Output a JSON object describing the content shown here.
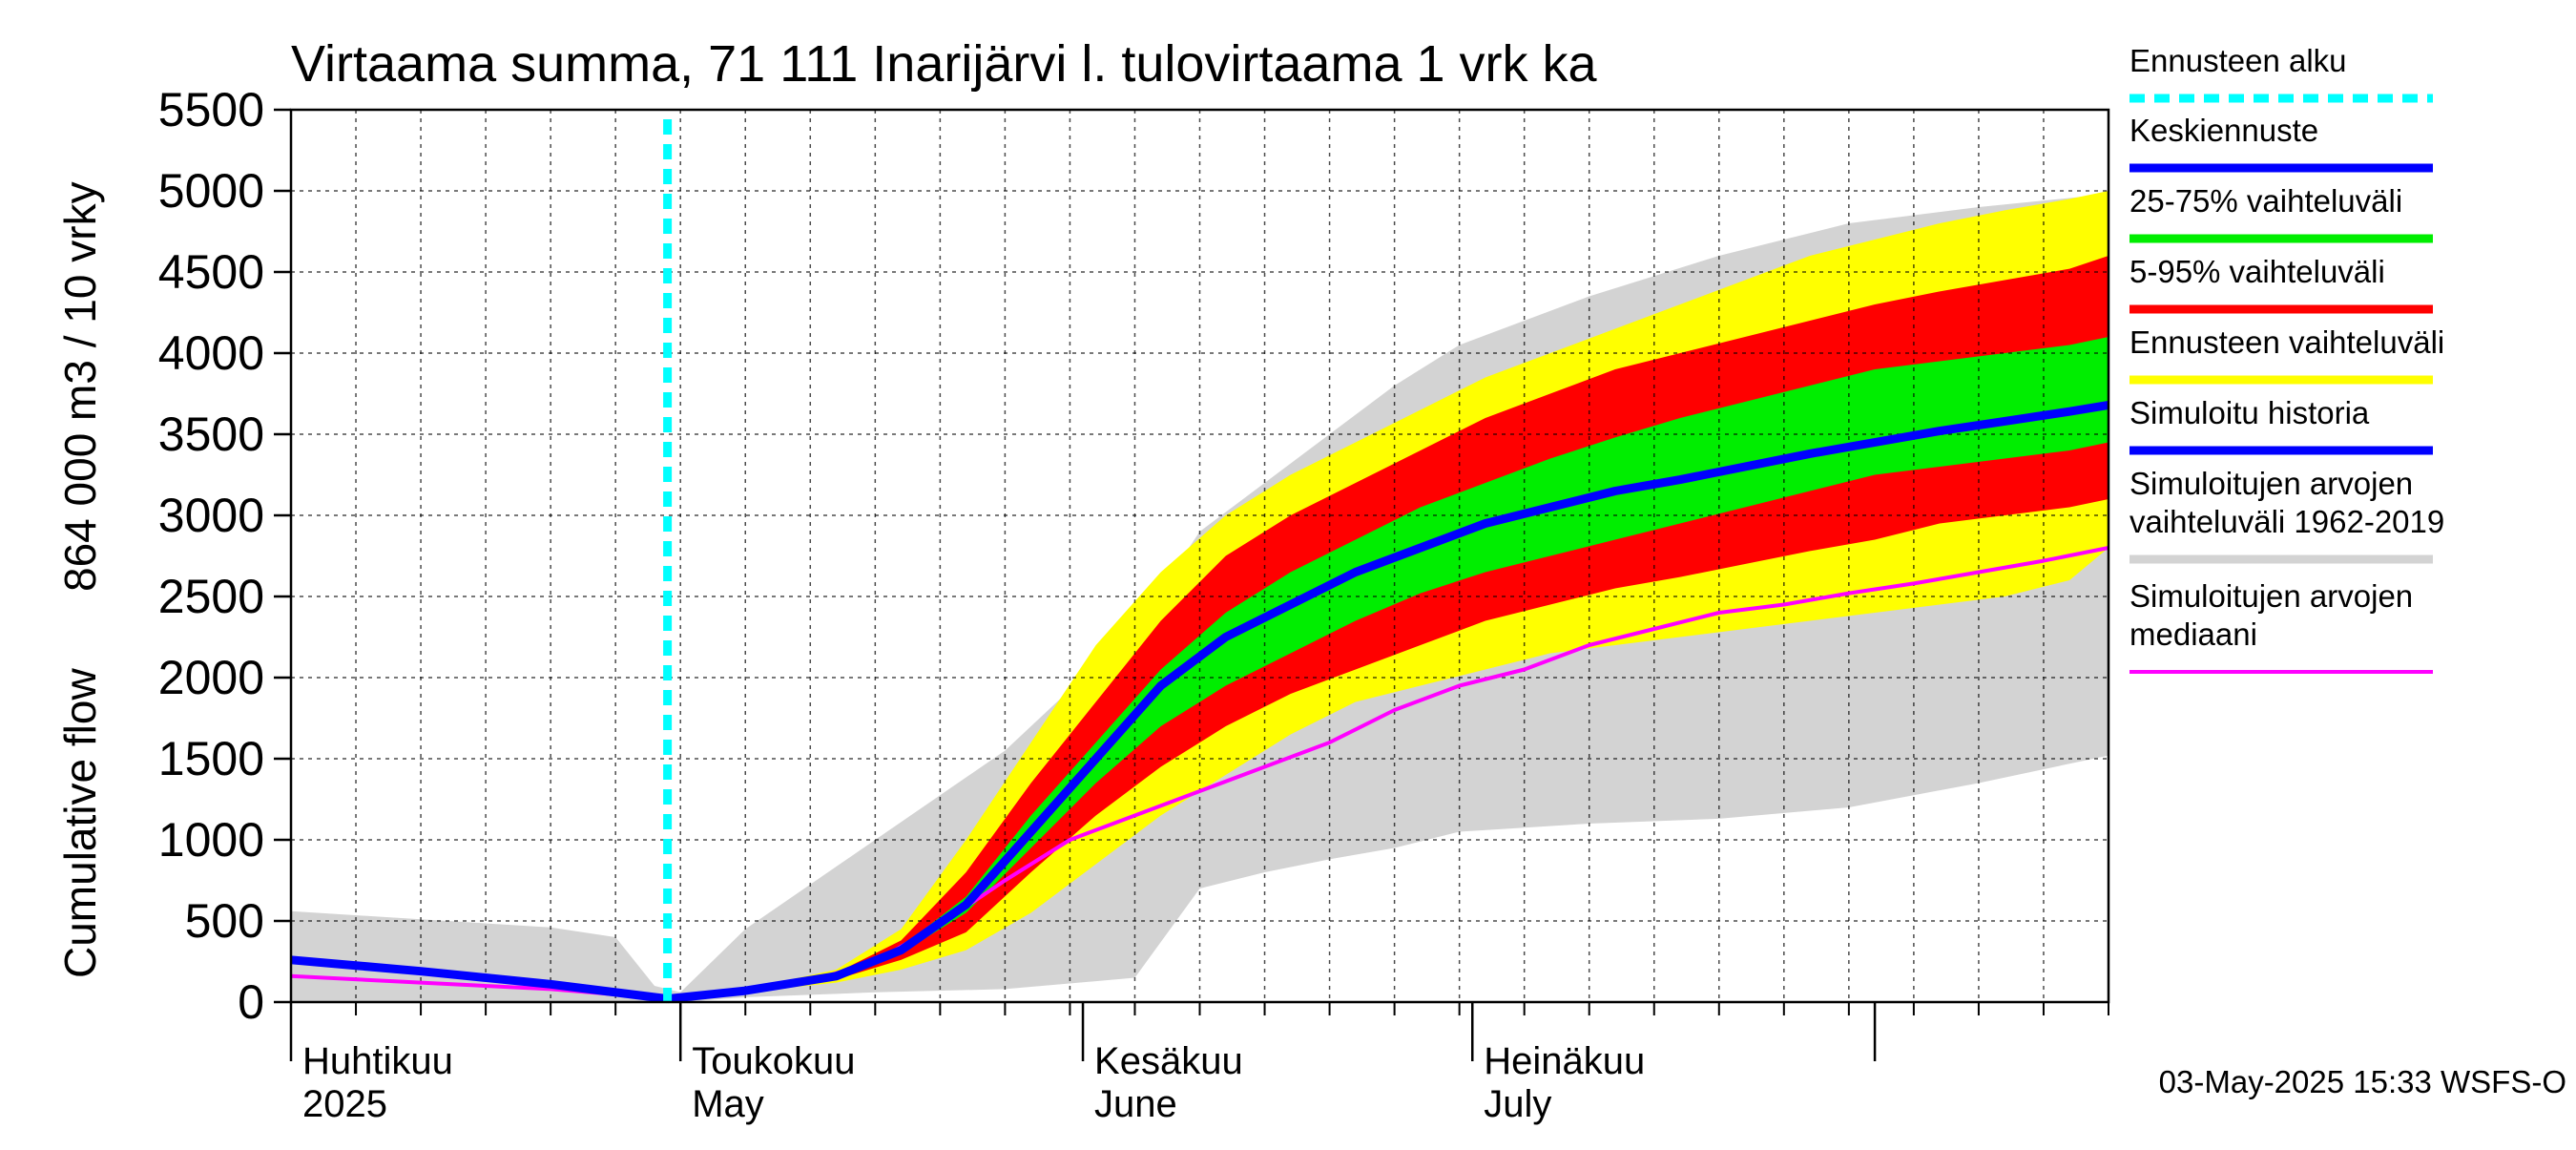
{
  "chart_data": {
    "type": "area",
    "title": "Virtaama summa, 71 111 Inarijärvi l. tulovirtaama 1 vrk ka",
    "ylabel_top": "864 000 m3 / 10 vrky",
    "ylabel_bottom": "Cumulative flow",
    "ylim": [
      0,
      5500
    ],
    "yticks": [
      "0",
      "500",
      "1000",
      "1500",
      "2000",
      "2500",
      "3000",
      "3500",
      "4000",
      "4500",
      "5000",
      "5500"
    ],
    "x_month_labels": [
      {
        "fi": "Huhtikuu",
        "en": "2025"
      },
      {
        "fi": "Toukokuu",
        "en": "May"
      },
      {
        "fi": "Kesäkuu",
        "en": "June"
      },
      {
        "fi": "Heinäkuu",
        "en": "July"
      }
    ],
    "x_range_days": [
      "2025-04-01",
      "2025-08-17"
    ],
    "grid": true,
    "forecast_start_day": 29,
    "series": [
      {
        "name": "Simuloitujen arvojen vaihteluväli 1962-2019",
        "color": "#d3d3d3",
        "kind": "band",
        "x": [
          0,
          10,
          20,
          25,
          28,
          30,
          35,
          45,
          55,
          65,
          70,
          75,
          80,
          85,
          90,
          100,
          110,
          120,
          130,
          140
        ],
        "lower": [
          0,
          0,
          0,
          0,
          0,
          0,
          30,
          60,
          80,
          150,
          700,
          800,
          880,
          950,
          1050,
          1100,
          1130,
          1200,
          1350,
          1520
        ],
        "upper": [
          560,
          510,
          460,
          400,
          100,
          60,
          450,
          1000,
          1550,
          2300,
          2900,
          3200,
          3500,
          3800,
          4050,
          4350,
          4600,
          4800,
          4900,
          4980
        ]
      },
      {
        "name": "Ennusteen vaihteluväli",
        "color": "#ffff00",
        "kind": "band",
        "x": [
          29,
          35,
          42,
          47,
          52,
          57,
          62,
          67,
          72,
          77,
          82,
          87,
          92,
          97,
          102,
          107,
          112,
          117,
          122,
          127,
          132,
          137,
          140
        ],
        "lower": [
          30,
          60,
          120,
          200,
          320,
          550,
          850,
          1150,
          1400,
          1650,
          1850,
          1950,
          2050,
          2150,
          2200,
          2250,
          2300,
          2350,
          2400,
          2450,
          2500,
          2600,
          2800
        ],
        "upper": [
          30,
          80,
          200,
          450,
          1000,
          1600,
          2200,
          2650,
          3000,
          3250,
          3450,
          3650,
          3850,
          4000,
          4150,
          4300,
          4450,
          4600,
          4700,
          4800,
          4880,
          4950,
          5000
        ]
      },
      {
        "name": "5-95% vaihteluväli",
        "color": "#ff0000",
        "kind": "band",
        "x": [
          29,
          35,
          42,
          47,
          52,
          57,
          62,
          67,
          72,
          77,
          82,
          87,
          92,
          97,
          102,
          107,
          112,
          117,
          122,
          127,
          132,
          137,
          140
        ],
        "lower": [
          30,
          65,
          140,
          260,
          430,
          800,
          1150,
          1450,
          1700,
          1900,
          2050,
          2200,
          2350,
          2450,
          2550,
          2620,
          2700,
          2780,
          2850,
          2950,
          3000,
          3050,
          3100
        ],
        "upper": [
          30,
          75,
          180,
          380,
          800,
          1350,
          1850,
          2350,
          2750,
          3000,
          3200,
          3400,
          3600,
          3750,
          3900,
          4000,
          4100,
          4200,
          4300,
          4380,
          4450,
          4520,
          4600
        ]
      },
      {
        "name": "25-75% vaihteluväli",
        "color": "#00ee00",
        "kind": "band",
        "x": [
          29,
          35,
          42,
          47,
          52,
          57,
          62,
          67,
          72,
          77,
          82,
          87,
          92,
          97,
          102,
          107,
          112,
          117,
          122,
          127,
          132,
          137,
          140
        ],
        "lower": [
          30,
          68,
          155,
          300,
          550,
          950,
          1350,
          1700,
          1950,
          2150,
          2350,
          2520,
          2650,
          2750,
          2850,
          2950,
          3050,
          3150,
          3250,
          3300,
          3350,
          3400,
          3450
        ],
        "upper": [
          30,
          72,
          170,
          340,
          650,
          1150,
          1600,
          2050,
          2400,
          2650,
          2850,
          3050,
          3200,
          3350,
          3480,
          3600,
          3700,
          3800,
          3900,
          3950,
          4000,
          4050,
          4100
        ]
      },
      {
        "name": "Simuloitujen arvojen mediaani",
        "color": "#ff00ff",
        "kind": "line",
        "x": [
          0,
          10,
          20,
          29,
          35,
          40,
          45,
          50,
          55,
          60,
          65,
          70,
          75,
          80,
          85,
          90,
          95,
          100,
          105,
          110,
          115,
          120,
          125,
          130,
          135,
          140
        ],
        "y": [
          160,
          120,
          80,
          20,
          70,
          130,
          250,
          480,
          750,
          1000,
          1150,
          1300,
          1450,
          1600,
          1800,
          1950,
          2050,
          2200,
          2300,
          2400,
          2450,
          2520,
          2580,
          2650,
          2720,
          2800
        ]
      },
      {
        "name": "Simuloitu historia",
        "color": "#0000ff",
        "kind": "line",
        "x": [
          0,
          10,
          20,
          29
        ],
        "y": [
          260,
          190,
          110,
          20
        ]
      },
      {
        "name": "Keskiennuste",
        "color": "#0000ff",
        "kind": "line",
        "x": [
          29,
          35,
          42,
          47,
          52,
          57,
          62,
          67,
          72,
          77,
          82,
          87,
          92,
          97,
          102,
          107,
          112,
          117,
          122,
          127,
          132,
          137,
          140
        ],
        "y": [
          20,
          70,
          160,
          320,
          600,
          1050,
          1500,
          1950,
          2250,
          2450,
          2650,
          2800,
          2950,
          3050,
          3150,
          3220,
          3300,
          3380,
          3450,
          3520,
          3580,
          3640,
          3680
        ]
      }
    ]
  },
  "legend": [
    {
      "label": "Ennusteen alku",
      "color": "#00ffff",
      "style": "dashed"
    },
    {
      "label": "Keskiennuste",
      "color": "#0000ff",
      "style": "solid"
    },
    {
      "label": "25-75% vaihteluväli",
      "color": "#00ee00",
      "style": "solid"
    },
    {
      "label": "5-95% vaihteluväli",
      "color": "#ff0000",
      "style": "solid"
    },
    {
      "label": "Ennusteen vaihteluväli",
      "color": "#ffff00",
      "style": "solid"
    },
    {
      "label": "Simuloitu historia",
      "color": "#0000ff",
      "style": "solid"
    },
    {
      "label": "Simuloitujen arvojen vaihteluväli 1962-2019",
      "color": "#d3d3d3",
      "style": "solid"
    },
    {
      "label": "Simuloitujen arvojen mediaani",
      "color": "#ff00ff",
      "style": "thin"
    }
  ],
  "footer": "03-May-2025 15:33 WSFS-O"
}
